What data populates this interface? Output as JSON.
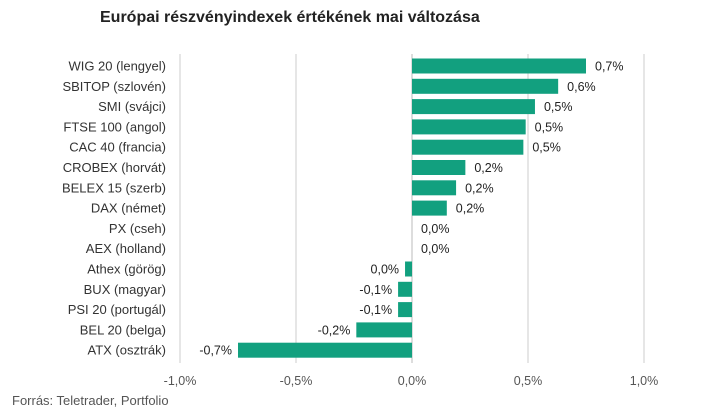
{
  "title": "Európai részvényindexek értékének mai változása",
  "source": "Forrás: Teletrader, Portfolio",
  "colors": {
    "bar": "#12a07f",
    "grid": "#cccccc",
    "text": "#333333",
    "zero_line": "#bbbbbb"
  },
  "chart_data": {
    "type": "bar",
    "orientation": "horizontal",
    "title": "Európai részvényindexek értékének mai változása",
    "xlabel": "",
    "ylabel": "",
    "xlim": [
      -1.0,
      1.0
    ],
    "grid": true,
    "categories": [
      "WIG 20 (lengyel)",
      "SBITOP (szlovén)",
      "SMI (svájci)",
      "FTSE 100 (angol)",
      "CAC 40 (francia)",
      "CROBEX (horvát)",
      "BELEX 15 (szerb)",
      "DAX (német)",
      "PX (cseh)",
      "AEX (holland)",
      "Athex (görög)",
      "BUX (magyar)",
      "PSI 20 (portugál)",
      "BEL 20 (belga)",
      "ATX (osztrák)"
    ],
    "values": [
      0.75,
      0.63,
      0.53,
      0.49,
      0.48,
      0.23,
      0.19,
      0.15,
      0.0,
      0.0,
      -0.03,
      -0.06,
      -0.06,
      -0.24,
      -0.75
    ],
    "data_labels": [
      "0,7%",
      "0,6%",
      "0,5%",
      "0,5%",
      "0,5%",
      "0,2%",
      "0,2%",
      "0,2%",
      "0,0%",
      "0,0%",
      "0,0%",
      "-0,1%",
      "-0,1%",
      "-0,2%",
      "-0,7%"
    ],
    "x_ticks": [
      -1.0,
      -0.5,
      0.0,
      0.5,
      1.0
    ],
    "x_tick_labels": [
      "-1,0%",
      "-0,5%",
      "0,0%",
      "0,5%",
      "1,0%"
    ]
  }
}
